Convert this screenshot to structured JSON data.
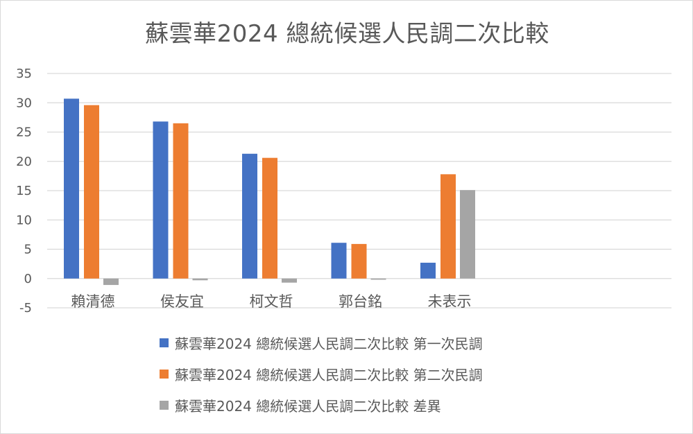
{
  "chart_data": {
    "type": "bar",
    "title": "蘇雲華2024 總統候選人民調二次比較",
    "categories": [
      "賴清德",
      "侯友宜",
      "柯文哲",
      "郭台銘",
      "未表示"
    ],
    "ylim": [
      -5,
      35
    ],
    "yticks": [
      -5,
      0,
      5,
      10,
      15,
      20,
      25,
      30,
      35
    ],
    "grid": true,
    "legend_position": "bottom",
    "series": [
      {
        "name": "蘇雲華2024 總統候選人民調二次比較 第一次民調",
        "color": "#4472c4",
        "values": [
          30.7,
          26.8,
          21.3,
          6.1,
          2.7
        ]
      },
      {
        "name": "蘇雲華2024 總統候選人民調二次比較 第二次民調",
        "color": "#ed7d31",
        "values": [
          29.6,
          26.5,
          20.6,
          5.9,
          17.8
        ]
      },
      {
        "name": "蘇雲華2024 總統候選人民調二次比較 差異",
        "color": "#a5a5a5",
        "values": [
          -1.1,
          -0.3,
          -0.7,
          -0.2,
          15.1
        ]
      }
    ]
  }
}
